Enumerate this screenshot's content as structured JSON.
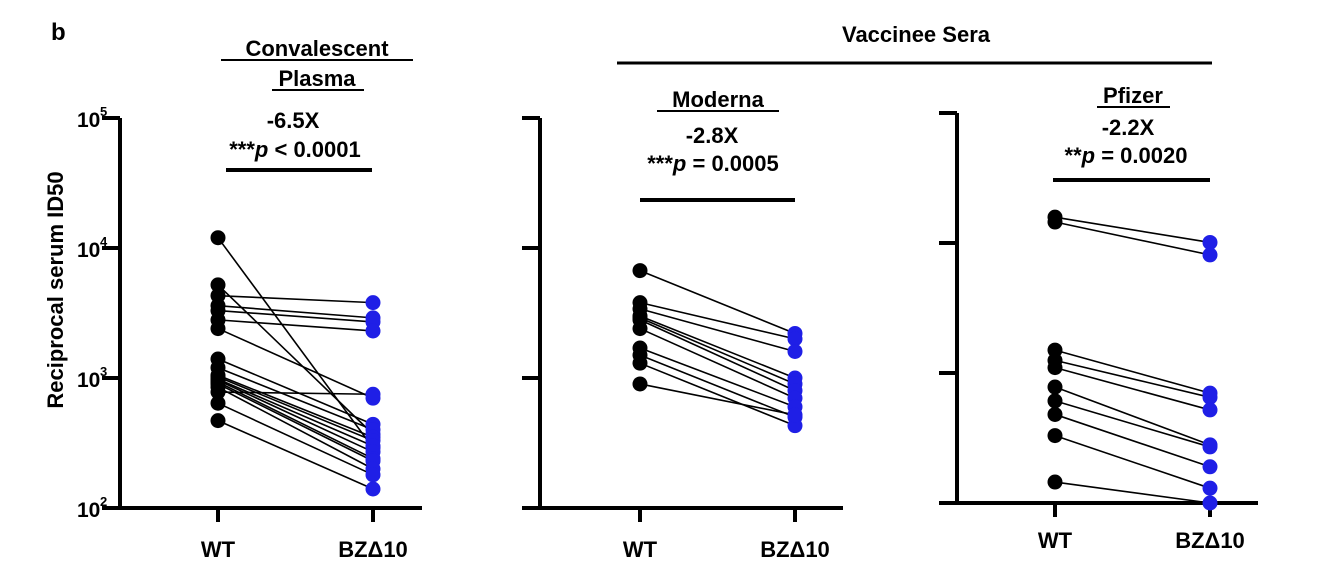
{
  "panel_label": "b",
  "y_axis_label": "Reciprocal serum ID50",
  "y_ticks": [
    {
      "base": "10",
      "exp": "2",
      "value": 100
    },
    {
      "base": "10",
      "exp": "3",
      "value": 1000
    },
    {
      "base": "10",
      "exp": "4",
      "value": 10000
    },
    {
      "base": "10",
      "exp": "5",
      "value": 100000
    }
  ],
  "group_header": "Vaccinee Sera",
  "colors": {
    "wt": "#000000",
    "bz": "#1f1fe6",
    "axis": "#000000"
  },
  "chart_data": [
    {
      "type": "scatter",
      "title": [
        "Convalescent",
        "Plasma"
      ],
      "categories": [
        "WT",
        "BZΔ10"
      ],
      "yscale": "log",
      "ylim": [
        100,
        100000
      ],
      "fold_change": "-6.5X",
      "stars": "***",
      "p_letter": "p",
      "p_text": " < 0.0001",
      "pairs": [
        [
          12000,
          290
        ],
        [
          5200,
          370
        ],
        [
          4300,
          3800
        ],
        [
          3600,
          2900
        ],
        [
          3300,
          2700
        ],
        [
          2800,
          2300
        ],
        [
          2400,
          700
        ],
        [
          1400,
          440
        ],
        [
          1200,
          400
        ],
        [
          1050,
          350
        ],
        [
          1020,
          330
        ],
        [
          980,
          300
        ],
        [
          960,
          270
        ],
        [
          930,
          240
        ],
        [
          900,
          230
        ],
        [
          850,
          200
        ],
        [
          780,
          750
        ],
        [
          640,
          180
        ],
        [
          470,
          140
        ]
      ]
    },
    {
      "type": "scatter",
      "title": [
        "Moderna"
      ],
      "categories": [
        "WT",
        "BZΔ10"
      ],
      "yscale": "log",
      "ylim": [
        100,
        100000
      ],
      "fold_change": "-2.8X",
      "stars": "***",
      "p_letter": "p",
      "p_text": " = 0.0005",
      "pairs": [
        [
          6700,
          2200
        ],
        [
          3800,
          2000
        ],
        [
          3400,
          1600
        ],
        [
          3000,
          1000
        ],
        [
          2900,
          900
        ],
        [
          2800,
          800
        ],
        [
          2400,
          700
        ],
        [
          1700,
          600
        ],
        [
          1500,
          500
        ],
        [
          1300,
          430
        ],
        [
          900,
          520
        ]
      ]
    },
    {
      "type": "scatter",
      "title": [
        "Pfizer"
      ],
      "categories": [
        "WT",
        "BZΔ10"
      ],
      "yscale": "log",
      "ylim": [
        100,
        100000
      ],
      "fold_change": "-2.2X",
      "stars": "**",
      "p_letter": "p",
      "p_text": " = 0.0020",
      "pairs": [
        [
          15800,
          10100
        ],
        [
          14500,
          8100
        ],
        [
          1500,
          700
        ],
        [
          1250,
          650
        ],
        [
          1100,
          520
        ],
        [
          780,
          280
        ],
        [
          610,
          270
        ],
        [
          480,
          190
        ],
        [
          330,
          130
        ],
        [
          145,
          100
        ]
      ]
    }
  ]
}
